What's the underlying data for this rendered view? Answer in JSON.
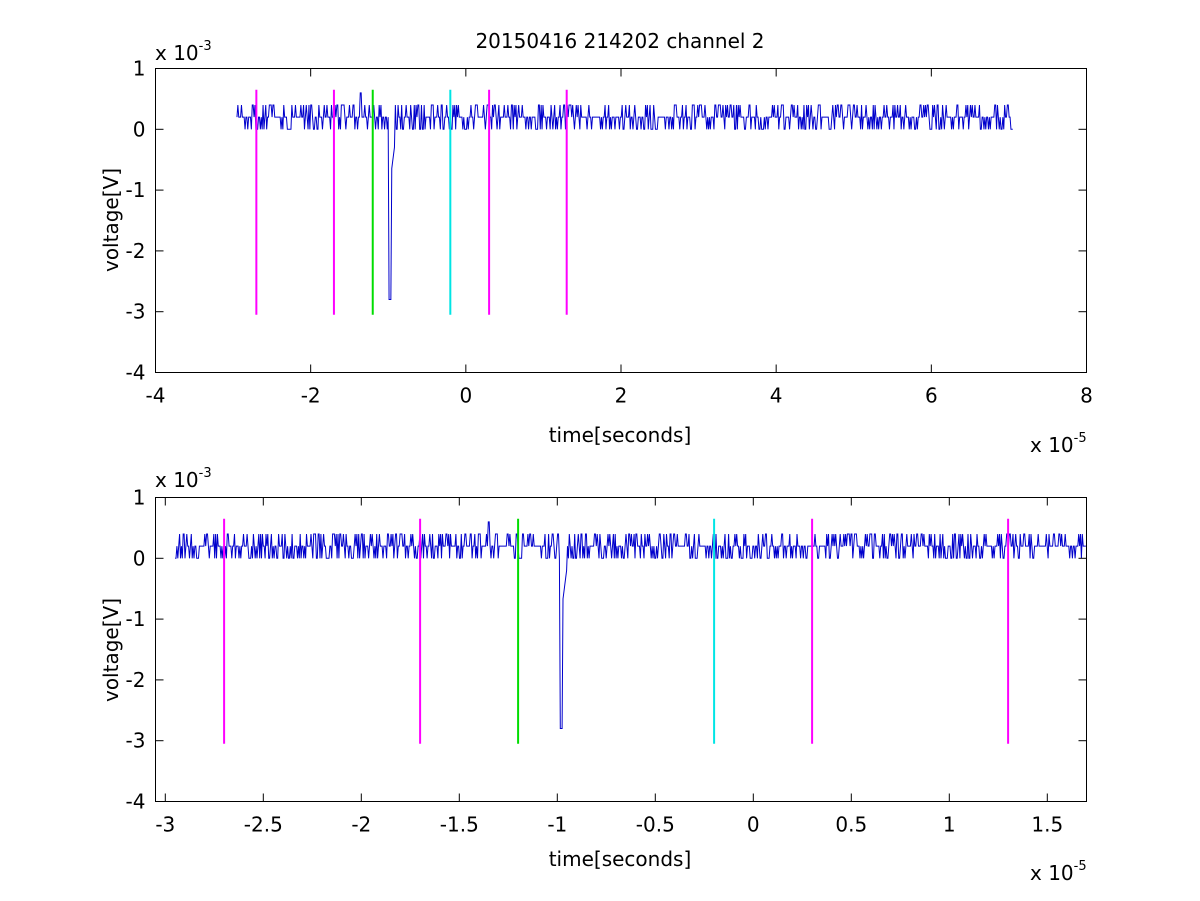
{
  "figure": {
    "title": "20150416 214202 channel 2"
  },
  "chart_data": [
    {
      "type": "line",
      "title": "20150416 214202 channel 2",
      "xlabel": "time[seconds]",
      "ylabel": "voltage[V]",
      "x_exponent_label": "x 10",
      "x_exponent": "-5",
      "y_exponent_label": "x 10",
      "y_exponent": "-3",
      "xlim": [
        -4,
        8
      ],
      "ylim": [
        -4,
        1
      ],
      "xticks": [
        -4,
        -2,
        0,
        2,
        4,
        6,
        8
      ],
      "xtick_labels": [
        "-4",
        "-2",
        "0",
        "2",
        "4",
        "6",
        "8"
      ],
      "yticks": [
        -4,
        -3,
        -2,
        -1,
        0,
        1
      ],
      "ytick_labels": [
        "-4",
        "-3",
        "-2",
        "-1",
        "0",
        "1"
      ],
      "grid": false,
      "signal": {
        "color": "#0000cc",
        "x_start": -2.95,
        "x_end": 7.05,
        "baseline_values": [
          0.0,
          0.2,
          0.4,
          0.2,
          0.2,
          0.4,
          0.0,
          0.2,
          0.4,
          0.2,
          0.0,
          0.2,
          0.2,
          0.4,
          0.2,
          0.0
        ],
        "spike": {
          "x": -0.98,
          "min": -2.8
        }
      },
      "markers": [
        {
          "x": -2.7,
          "color": "#ff00ff",
          "y_top": 0.65,
          "y_bottom": -3.05
        },
        {
          "x": -1.7,
          "color": "#ff00ff",
          "y_top": 0.65,
          "y_bottom": -3.05
        },
        {
          "x": -1.2,
          "color": "#00dd00",
          "y_top": 0.65,
          "y_bottom": -3.05
        },
        {
          "x": -0.2,
          "color": "#00e5e5",
          "y_top": 0.65,
          "y_bottom": -3.05
        },
        {
          "x": 0.3,
          "color": "#ff00ff",
          "y_top": 0.65,
          "y_bottom": -3.05
        },
        {
          "x": 1.3,
          "color": "#ff00ff",
          "y_top": 0.65,
          "y_bottom": -3.05
        }
      ]
    },
    {
      "type": "line",
      "title": "",
      "xlabel": "time[seconds]",
      "ylabel": "voltage[V]",
      "x_exponent_label": "x 10",
      "x_exponent": "-5",
      "y_exponent_label": "x 10",
      "y_exponent": "-3",
      "xlim": [
        -3.05,
        1.7
      ],
      "ylim": [
        -4,
        1
      ],
      "xticks": [
        -3,
        -2.5,
        -2,
        -1.5,
        -1,
        -0.5,
        0,
        0.5,
        1,
        1.5
      ],
      "xtick_labels": [
        "-3",
        "-2.5",
        "-2",
        "-1.5",
        "-1",
        "-0.5",
        "0",
        "0.5",
        "1",
        "1.5"
      ],
      "yticks": [
        -4,
        -3,
        -2,
        -1,
        0,
        1
      ],
      "ytick_labels": [
        "-4",
        "-3",
        "-2",
        "-1",
        "0",
        "1"
      ],
      "grid": false,
      "signal": {
        "color": "#0000cc",
        "x_start": -2.95,
        "x_end": 1.7,
        "baseline_values": [
          0.0,
          0.2,
          0.4,
          0.2,
          0.2,
          0.4,
          0.0,
          0.2,
          0.4,
          0.2,
          0.0,
          0.2,
          0.2,
          0.4,
          0.2,
          0.0
        ],
        "spike": {
          "x": -0.98,
          "min": -2.8
        }
      },
      "markers": [
        {
          "x": -2.7,
          "color": "#ff00ff",
          "y_top": 0.65,
          "y_bottom": -3.05
        },
        {
          "x": -1.7,
          "color": "#ff00ff",
          "y_top": 0.65,
          "y_bottom": -3.05
        },
        {
          "x": -1.2,
          "color": "#00dd00",
          "y_top": 0.65,
          "y_bottom": -3.05
        },
        {
          "x": -0.2,
          "color": "#00e5e5",
          "y_top": 0.65,
          "y_bottom": -3.05
        },
        {
          "x": 0.3,
          "color": "#ff00ff",
          "y_top": 0.65,
          "y_bottom": -3.05
        },
        {
          "x": 1.3,
          "color": "#ff00ff",
          "y_top": 0.65,
          "y_bottom": -3.05
        }
      ]
    }
  ]
}
